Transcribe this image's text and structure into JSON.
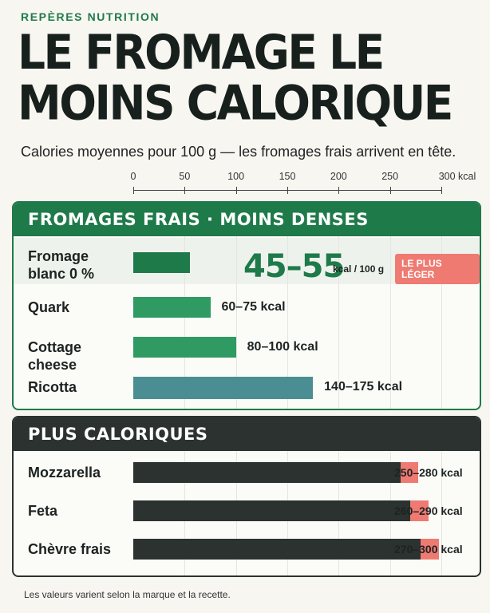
{
  "kicker": "REPÈRES NUTRITION",
  "title": "LE FROMAGE LE MOINS CALORIQUE",
  "subtitle": "Calories moyennes pour 100 g — les fromages frais arrivent en tête.",
  "footnote": "Les valeurs varient selon la marque et la recette.",
  "colors": {
    "accent": "#1f7a4a",
    "bar_green_dark": "#1f7a4a",
    "bar_green_mid": "#2f9a62",
    "bar_teal": "#4a8e93",
    "bar_dark": "#2b3230",
    "range_red": "#ef7a72"
  },
  "chart_data": {
    "type": "bar",
    "orientation": "horizontal",
    "x_unit": "kcal",
    "xlim": [
      0,
      300
    ],
    "x_ticks": [
      "0",
      "50",
      "100",
      "150",
      "200",
      "250",
      "300 kcal"
    ],
    "grid": true,
    "groups": [
      {
        "title": "FROMAGES FRAIS · MOINS DENSES",
        "items": [
          {
            "name": "Fromage blanc 0 %",
            "min": 45,
            "max": 55,
            "label": "45–55",
            "unit": "kcal / 100 g",
            "badge": "LE PLUS LÉGER"
          },
          {
            "name": "Quark",
            "min": 60,
            "max": 75,
            "label": "60–75 kcal"
          },
          {
            "name": "Cottage cheese",
            "min": 80,
            "max": 100,
            "label": "80–100 kcal"
          },
          {
            "name": "Ricotta",
            "min": 140,
            "max": 175,
            "label": "140–175 kcal"
          }
        ]
      },
      {
        "title": "PLUS CALORIQUES",
        "items": [
          {
            "name": "Mozzarella",
            "min": 250,
            "max": 280,
            "label": "250–280 kcal"
          },
          {
            "name": "Feta",
            "min": 260,
            "max": 290,
            "label": "260–290 kcal"
          },
          {
            "name": "Chèvre frais",
            "min": 270,
            "max": 300,
            "label": "270–300 kcal"
          }
        ]
      }
    ]
  }
}
